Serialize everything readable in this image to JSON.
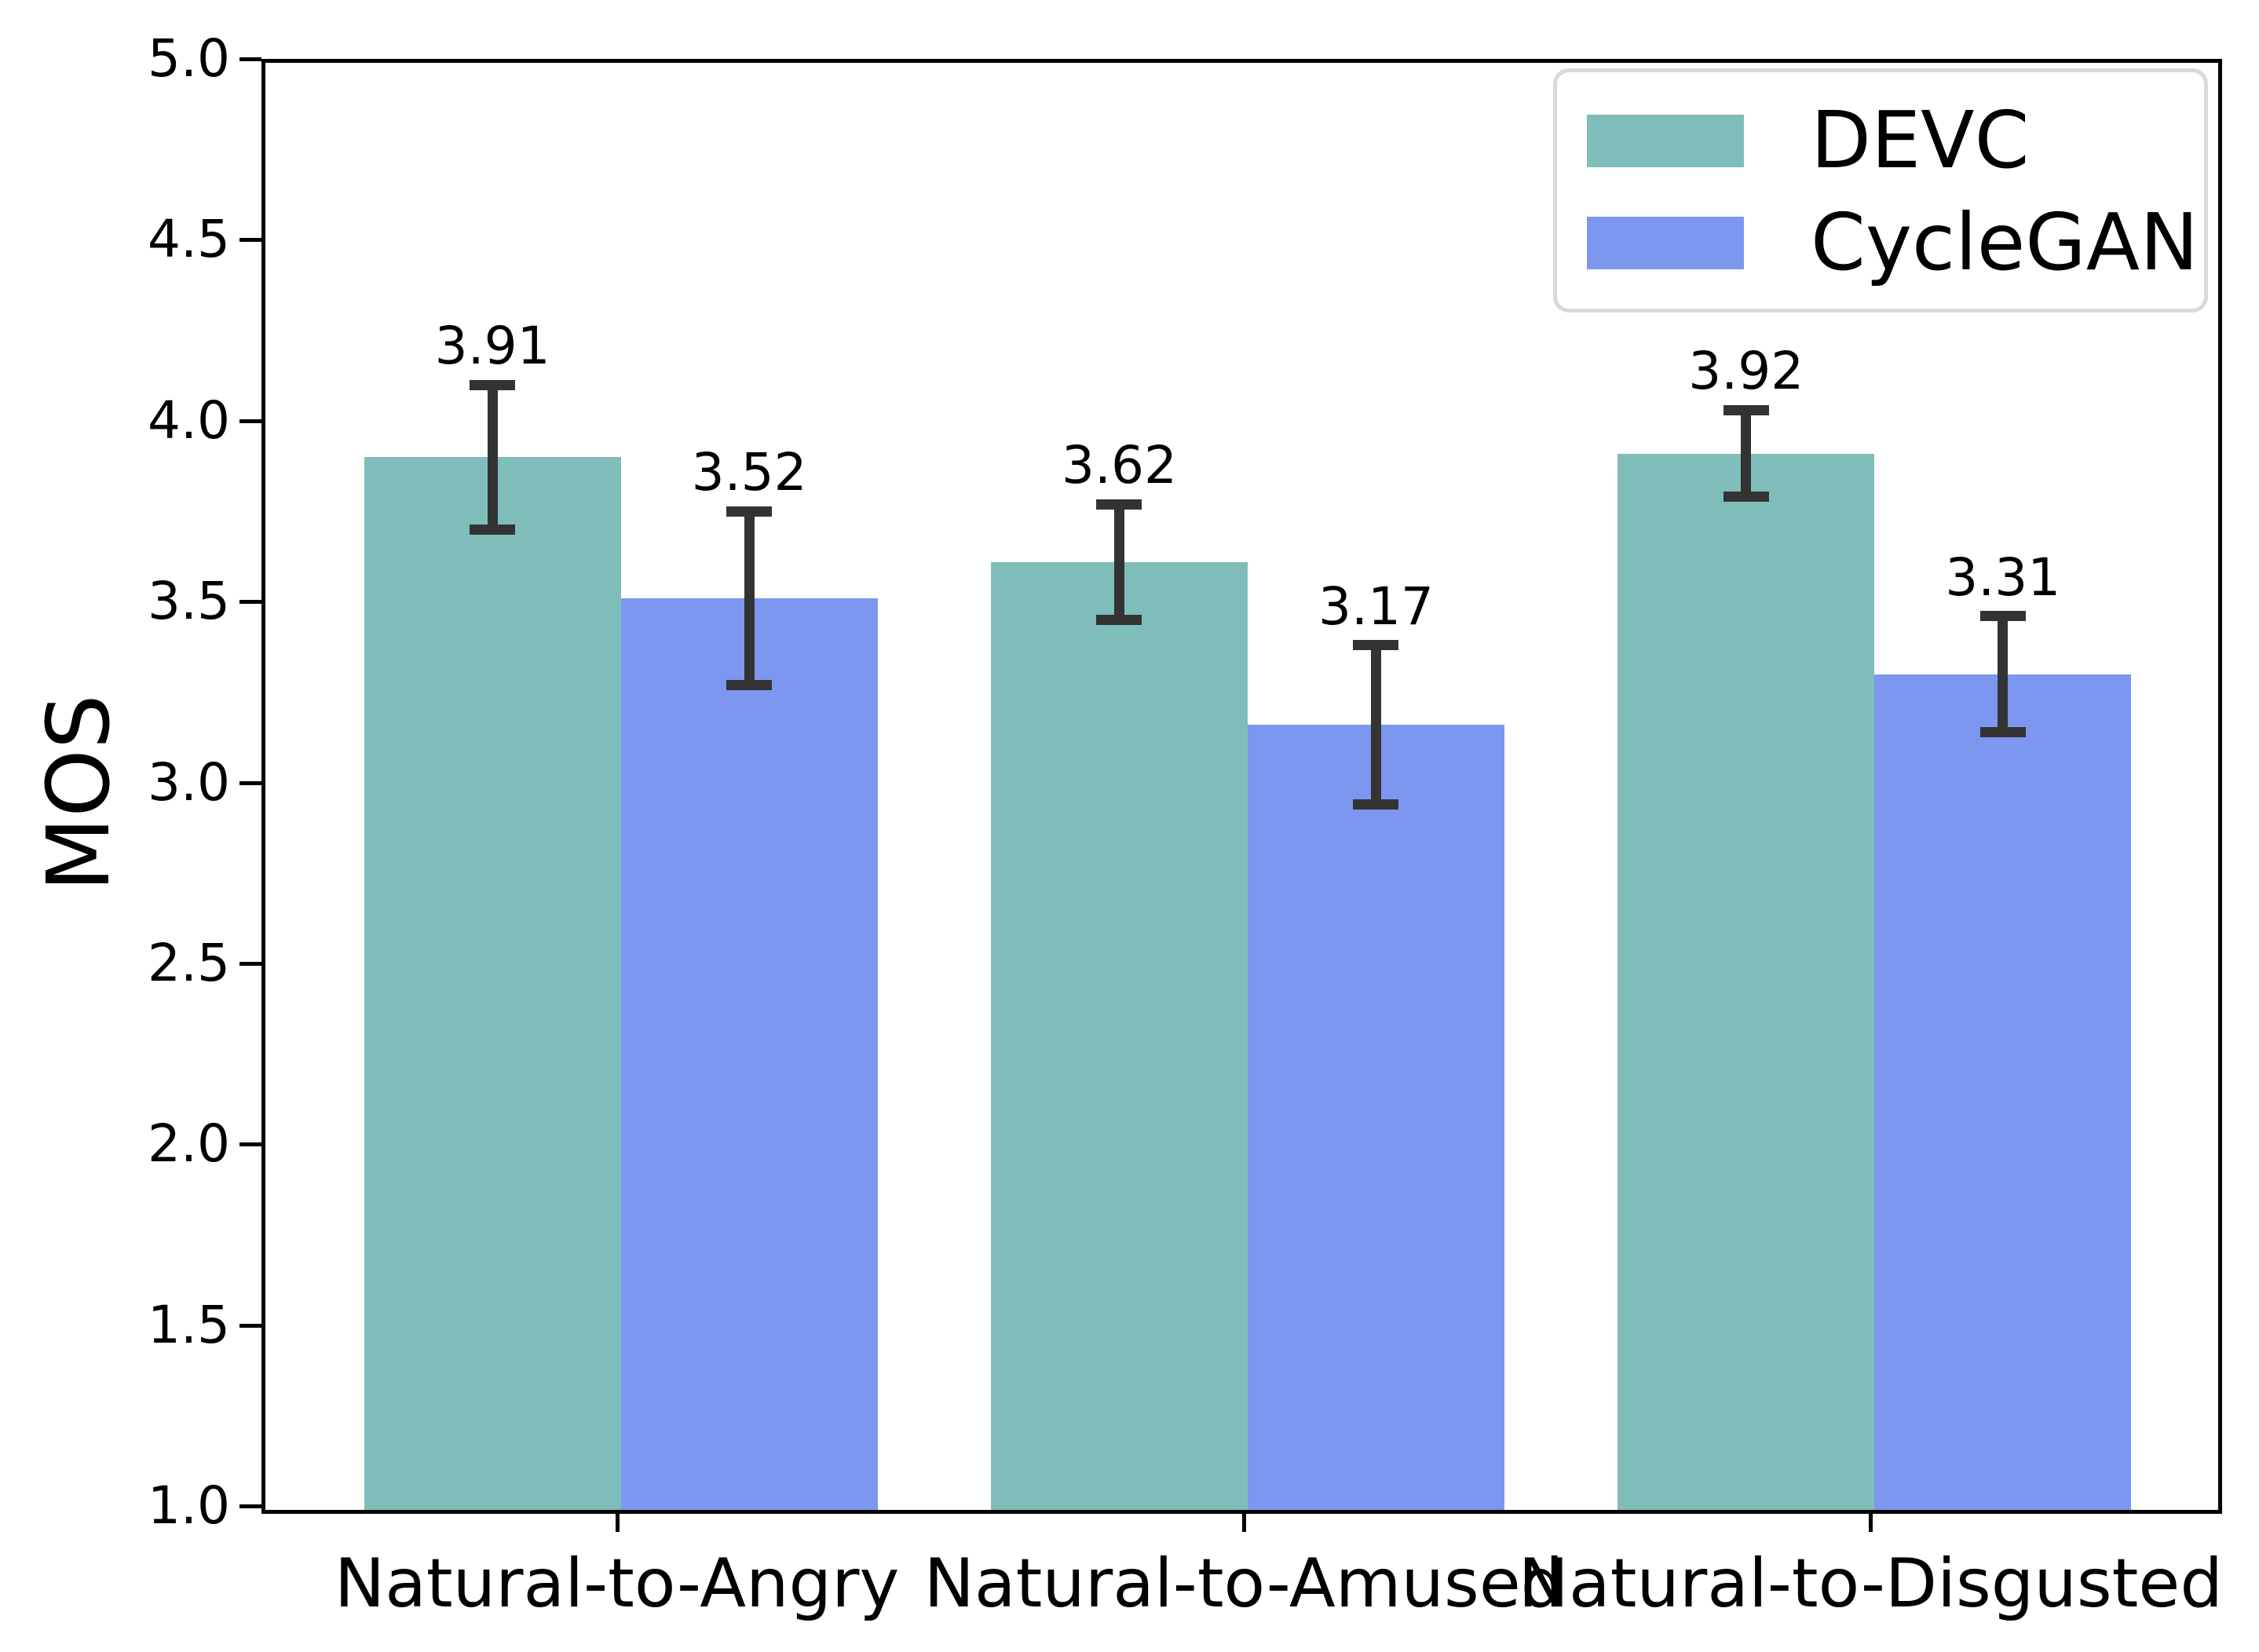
{
  "chart_data": {
    "type": "bar",
    "title": "",
    "xlabel": "",
    "ylabel": "MOS",
    "ylim": [
      1.0,
      5.0
    ],
    "ytick_values": [
      5.0,
      4.5,
      4.0,
      3.5,
      3.0,
      2.5,
      2.0,
      1.5,
      1.0
    ],
    "ytick_labels": [
      "5.0",
      "4.5",
      "4.0",
      "3.5",
      "3.0",
      "2.5",
      "2.0",
      "1.5",
      "1.0"
    ],
    "categories": [
      "Natural-to-Angry",
      "Natural-to-Amused",
      "Natural-to-Disgusted"
    ],
    "series": [
      {
        "name": "DEVC",
        "color": "#7fbdbb",
        "values": [
          3.91,
          3.62,
          3.92
        ],
        "errors": [
          0.2,
          0.16,
          0.12
        ],
        "value_labels": [
          "3.91",
          "3.62",
          "3.92"
        ]
      },
      {
        "name": "CycleGAN",
        "color": "#7d96f0",
        "values": [
          3.52,
          3.17,
          3.31
        ],
        "errors": [
          0.24,
          0.22,
          0.16
        ],
        "value_labels": [
          "3.52",
          "3.17",
          "3.31"
        ]
      }
    ],
    "legend": {
      "position": "upper right",
      "entries": [
        "DEVC",
        "CycleGAN"
      ]
    },
    "grid": false,
    "errorbar_color": "#333333",
    "axis_color": "#000000",
    "background_color": "#ffffff"
  }
}
